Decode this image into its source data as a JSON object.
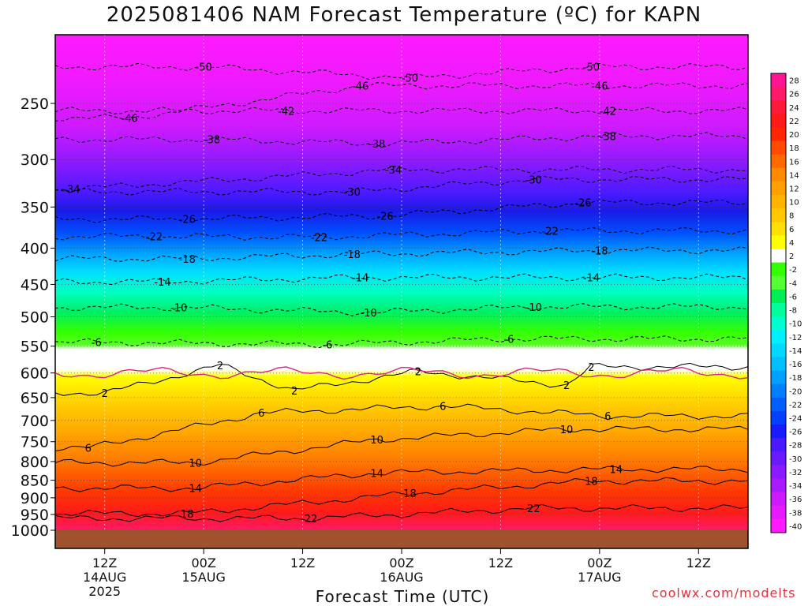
{
  "chart_data": {
    "type": "heatmap",
    "title": "2025081406 NAM Forecast Temperature (ºC) for KAPN",
    "xlabel": "Forecast Time (UTC)",
    "ylabel": "",
    "y_scale": "log-pressure",
    "y_ticks": [
      250,
      300,
      350,
      400,
      450,
      500,
      550,
      600,
      650,
      700,
      750,
      800,
      850,
      900,
      950,
      1000
    ],
    "ylim": [
      1000,
      200
    ],
    "x_ticks": [
      {
        "label": "12Z",
        "sub": "14AUG",
        "sub2": "2025",
        "hour": 6
      },
      {
        "label": "00Z",
        "sub": "15AUG",
        "sub2": "",
        "hour": 18
      },
      {
        "label": "12Z",
        "sub": "",
        "sub2": "",
        "hour": 30
      },
      {
        "label": "00Z",
        "sub": "16AUG",
        "sub2": "",
        "hour": 42
      },
      {
        "label": "12Z",
        "sub": "",
        "sub2": "",
        "hour": 54
      },
      {
        "label": "00Z",
        "sub": "17AUG",
        "sub2": "",
        "hour": 66
      },
      {
        "label": "12Z",
        "sub": "",
        "sub2": "",
        "hour": 78
      }
    ],
    "xlim": [
      0,
      84
    ],
    "grid": true,
    "colorbar": {
      "labels": [
        28,
        26,
        24,
        22,
        20,
        18,
        16,
        14,
        12,
        10,
        8,
        6,
        4,
        2,
        -2,
        -4,
        -6,
        -8,
        -10,
        -12,
        -14,
        -16,
        -18,
        -20,
        -22,
        -24,
        -26,
        -28,
        -30,
        -32,
        -34,
        -36,
        -38,
        -40
      ],
      "colors": [
        "#ff1493",
        "#ff1a6a",
        "#ff1a3a",
        "#ff1a1a",
        "#ff2600",
        "#ff4a00",
        "#ff6a00",
        "#ff8a00",
        "#ffa000",
        "#ffb400",
        "#ffc800",
        "#ffe000",
        "#ffff00",
        "#ffffff",
        "#33ff00",
        "#55ff33",
        "#00ee55",
        "#00ff9a",
        "#00ffd0",
        "#00f0ff",
        "#00d8ff",
        "#00bfff",
        "#00a0ff",
        "#0080ff",
        "#0060ff",
        "#0040ff",
        "#1a1aff",
        "#4a1aff",
        "#6a1aff",
        "#8a1aff",
        "#aa1aff",
        "#cc1aff",
        "#e61aff",
        "#ff1aff"
      ]
    },
    "contour_labels": [
      {
        "t": 18,
        "p": 222,
        "v": "-50"
      },
      {
        "t": 43,
        "p": 230,
        "v": "-50"
      },
      {
        "t": 65,
        "p": 222,
        "v": "-50"
      },
      {
        "t": 37,
        "p": 236,
        "v": "-46"
      },
      {
        "t": 66,
        "p": 236,
        "v": "-46"
      },
      {
        "t": 9,
        "p": 262,
        "v": "-46"
      },
      {
        "t": 28,
        "p": 256,
        "v": "-42"
      },
      {
        "t": 67,
        "p": 256,
        "v": "-42"
      },
      {
        "t": 19,
        "p": 281,
        "v": "-38"
      },
      {
        "t": 39,
        "p": 285,
        "v": "-38"
      },
      {
        "t": 67,
        "p": 278,
        "v": "-38"
      },
      {
        "t": 41,
        "p": 310,
        "v": "-34"
      },
      {
        "t": 2,
        "p": 330,
        "v": "-34"
      },
      {
        "t": 58,
        "p": 320,
        "v": "-30"
      },
      {
        "t": 36,
        "p": 333,
        "v": "-30"
      },
      {
        "t": 64,
        "p": 345,
        "v": "-26"
      },
      {
        "t": 16,
        "p": 364,
        "v": "-26"
      },
      {
        "t": 40,
        "p": 360,
        "v": "-26"
      },
      {
        "t": 12,
        "p": 385,
        "v": "-22"
      },
      {
        "t": 32,
        "p": 386,
        "v": "-22"
      },
      {
        "t": 60,
        "p": 378,
        "v": "-22"
      },
      {
        "t": 66,
        "p": 403,
        "v": "-18"
      },
      {
        "t": 16,
        "p": 414,
        "v": "-18"
      },
      {
        "t": 36,
        "p": 408,
        "v": "-18"
      },
      {
        "t": 13,
        "p": 446,
        "v": "-14"
      },
      {
        "t": 37,
        "p": 440,
        "v": "-14"
      },
      {
        "t": 65,
        "p": 440,
        "v": "-14"
      },
      {
        "t": 15,
        "p": 485,
        "v": "-10"
      },
      {
        "t": 38,
        "p": 493,
        "v": "-10"
      },
      {
        "t": 58,
        "p": 484,
        "v": "-10"
      },
      {
        "t": 5,
        "p": 543,
        "v": "-6"
      },
      {
        "t": 33,
        "p": 547,
        "v": "-6"
      },
      {
        "t": 55,
        "p": 537,
        "v": "-6"
      },
      {
        "t": 20,
        "p": 585,
        "v": "2"
      },
      {
        "t": 44,
        "p": 597,
        "v": "2"
      },
      {
        "t": 65,
        "p": 588,
        "v": "2"
      },
      {
        "t": 6,
        "p": 640,
        "v": "2"
      },
      {
        "t": 29,
        "p": 635,
        "v": "2"
      },
      {
        "t": 62,
        "p": 624,
        "v": "2"
      },
      {
        "t": 25,
        "p": 683,
        "v": "6"
      },
      {
        "t": 47,
        "p": 668,
        "v": "6"
      },
      {
        "t": 67,
        "p": 690,
        "v": "6"
      },
      {
        "t": 4,
        "p": 765,
        "v": "6"
      },
      {
        "t": 39,
        "p": 745,
        "v": "10"
      },
      {
        "t": 62,
        "p": 720,
        "v": "10"
      },
      {
        "t": 17,
        "p": 803,
        "v": "10"
      },
      {
        "t": 39,
        "p": 830,
        "v": "14"
      },
      {
        "t": 68,
        "p": 820,
        "v": "14"
      },
      {
        "t": 17,
        "p": 872,
        "v": "14"
      },
      {
        "t": 43,
        "p": 887,
        "v": "18"
      },
      {
        "t": 65,
        "p": 852,
        "v": "18"
      },
      {
        "t": 16,
        "p": 947,
        "v": "18"
      },
      {
        "t": 31,
        "p": 962,
        "v": "22"
      },
      {
        "t": 58,
        "p": 931,
        "v": "22"
      }
    ]
  },
  "credit": "coolwx.com/modelts"
}
